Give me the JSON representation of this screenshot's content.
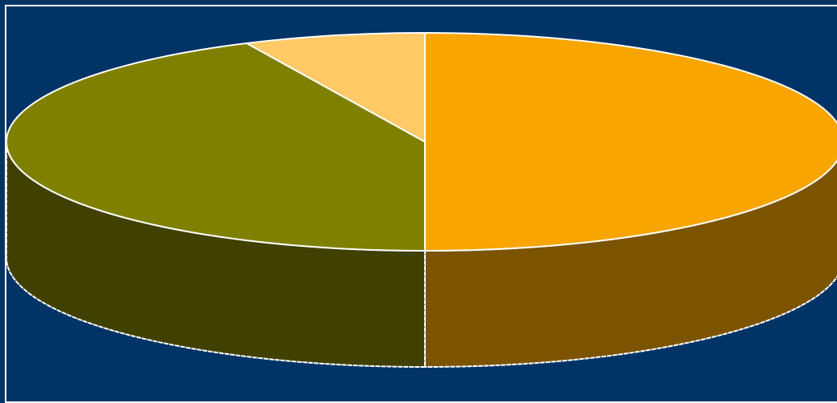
{
  "chart_data": {
    "type": "pie",
    "style": "3d",
    "title": "",
    "slices": [
      {
        "value": 50,
        "color": "#F8A500",
        "side_color": "#7C5400"
      },
      {
        "value": 43,
        "color": "#808000",
        "side_color": "#404000"
      },
      {
        "value": 7,
        "color": "#FFC966",
        "side_color": "#806433"
      }
    ],
    "start_angle_deg": 90,
    "direction": "clockwise",
    "legend": "none",
    "data_labels": "none"
  },
  "colors": {
    "background": "#003366",
    "outline": "#FFFFFF"
  }
}
